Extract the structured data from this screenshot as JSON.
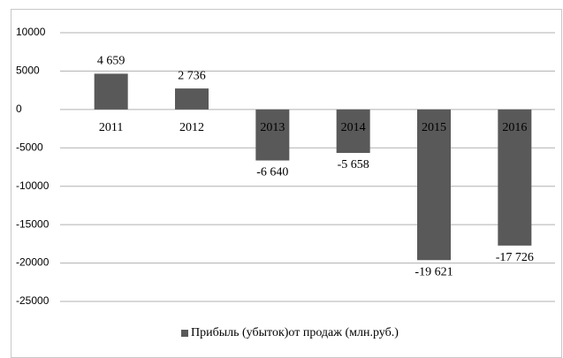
{
  "chart_data": {
    "type": "bar",
    "categories": [
      "2011",
      "2012",
      "2013",
      "2014",
      "2015",
      "2016"
    ],
    "series": [
      {
        "name": "Прибыль (убыток)от продаж (млн.руб.)",
        "color": "#595959",
        "values": [
          4659,
          2736,
          -6640,
          -5658,
          -19621,
          -17726
        ],
        "value_labels": [
          "4 659",
          "2 736",
          "-6 640",
          "-5 658",
          "-19 621",
          "-17 726"
        ]
      }
    ],
    "ylim": [
      -25000,
      10000
    ],
    "yticks": [
      -25000,
      -20000,
      -15000,
      -10000,
      -5000,
      0,
      5000,
      10000
    ],
    "grid": true,
    "legend": "bottom"
  }
}
